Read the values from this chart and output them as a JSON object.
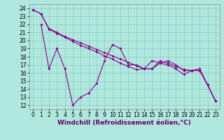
{
  "xlabel": "Windchill (Refroidissement éolien,°C)",
  "bg_color": "#b0e8e0",
  "line_color": "#880088",
  "grid_color": "#88ccbb",
  "xlim": [
    -0.5,
    23.5
  ],
  "ylim": [
    11.5,
    24.5
  ],
  "xticks": [
    0,
    1,
    2,
    3,
    4,
    5,
    6,
    7,
    8,
    9,
    10,
    11,
    12,
    13,
    14,
    15,
    16,
    17,
    18,
    19,
    20,
    21,
    22,
    23
  ],
  "yticks": [
    12,
    13,
    14,
    15,
    16,
    17,
    18,
    19,
    20,
    21,
    22,
    23,
    24
  ],
  "line1_x": [
    0,
    1,
    2,
    3,
    4,
    5,
    6,
    7,
    8,
    9,
    10,
    11,
    12,
    13,
    14,
    15,
    16,
    17,
    18,
    19,
    20,
    21,
    22,
    23
  ],
  "line1_y": [
    23.8,
    23.3,
    21.5,
    21.0,
    20.5,
    20.1,
    19.7,
    19.3,
    18.9,
    18.5,
    18.1,
    17.7,
    17.3,
    16.9,
    16.5,
    16.5,
    17.5,
    17.2,
    16.8,
    16.4,
    16.3,
    16.3,
    14.5,
    12.5
  ],
  "line2_x": [
    0,
    1,
    2,
    3,
    4,
    5,
    6,
    7,
    8,
    9,
    10,
    11,
    12,
    13,
    14,
    15,
    16,
    17,
    18,
    19,
    20,
    21,
    22,
    23
  ],
  "line2_y": [
    23.8,
    23.3,
    21.4,
    20.9,
    20.4,
    19.9,
    19.4,
    19.0,
    18.6,
    18.1,
    17.7,
    17.2,
    16.8,
    16.4,
    16.5,
    16.5,
    17.2,
    17.0,
    16.5,
    15.8,
    16.3,
    16.3,
    14.5,
    12.5
  ],
  "line3_x": [
    1,
    2,
    3,
    4,
    5,
    6,
    7,
    8,
    9,
    10,
    11,
    12,
    13,
    14,
    15,
    16,
    17,
    18,
    19,
    20,
    21,
    22,
    23
  ],
  "line3_y": [
    22.0,
    16.5,
    19.0,
    16.5,
    12.0,
    13.0,
    13.5,
    14.7,
    17.5,
    19.5,
    19.0,
    17.0,
    17.0,
    16.5,
    17.5,
    17.2,
    17.5,
    17.0,
    16.3,
    16.3,
    16.5,
    14.5,
    12.5
  ],
  "marker": "D",
  "marker_size": 2,
  "line_width": 0.8,
  "xlabel_fontsize": 6.5,
  "tick_fontsize": 5.5
}
